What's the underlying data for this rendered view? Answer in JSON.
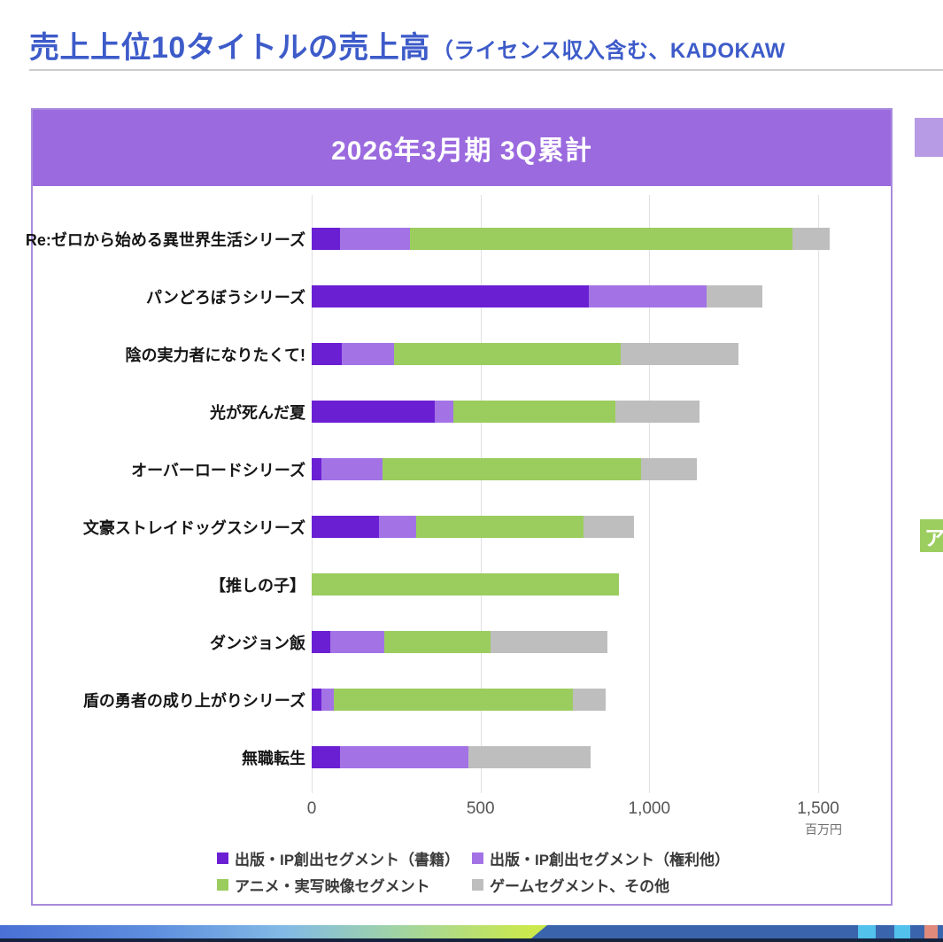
{
  "page": {
    "title_main": "売上上位10タイトルの売上高",
    "title_paren": "（ライセンス収入含む、KADOKAW",
    "title_color": "#3d5bc9"
  },
  "side": {
    "top_right_swatch_color": "#b79be5",
    "green_badge_label": "ア",
    "green_badge_color": "#9bce5f"
  },
  "chart_data": {
    "type": "bar",
    "orientation": "horizontal",
    "stacked": true,
    "title": "2026年3月期 3Q累計",
    "unit": "百万円",
    "xlim": [
      0,
      1500
    ],
    "grid": true,
    "legend_position": "bottom",
    "x_ticks": [
      "0",
      "500",
      "1,000",
      "1,500"
    ],
    "x_tick_values": [
      0,
      500,
      1000,
      1500
    ],
    "categories": [
      "Re:ゼロから始める異世界生活シリーズ",
      "パンどろぼうシリーズ",
      "陰の実力者になりたくて!",
      "光が死んだ夏",
      "オーバーロードシリーズ",
      "文豪ストレイドッグスシリーズ",
      "【推しの子】",
      "ダンジョン飯",
      "盾の勇者の成り上がりシリーズ",
      "無職転生"
    ],
    "series": [
      {
        "name": "出版・IP創出セグメント（書籍）",
        "color": "#6b1fd3",
        "values": [
          85,
          820,
          90,
          365,
          30,
          200,
          0,
          55,
          30,
          85
        ]
      },
      {
        "name": "出版・IP創出セグメント（権利他）",
        "color": "#a373e6",
        "values": [
          205,
          350,
          155,
          55,
          180,
          110,
          0,
          160,
          35,
          380
        ]
      },
      {
        "name": "アニメ・実写映像セグメント",
        "color": "#9acd5e",
        "values": [
          1135,
          0,
          670,
          480,
          765,
          495,
          910,
          315,
          710,
          0
        ]
      },
      {
        "name": "ゲームセグメント、その他",
        "color": "#bebebe",
        "values": [
          110,
          165,
          350,
          250,
          165,
          150,
          0,
          345,
          95,
          360
        ]
      }
    ]
  },
  "panel": {
    "header_bg": "#9b6adf",
    "border_color": "#a88bdc"
  },
  "footer_strip": {
    "gradient_colors": [
      "#4a70d5",
      "#5e8ede",
      "#82bae6",
      "#9fd3a6",
      "#cbe94c"
    ],
    "base_color": "#3a64ab",
    "bottom_edge_color": "#16233e",
    "blocks": [
      {
        "x": 969,
        "w": 20,
        "color": "#52c1ec"
      },
      {
        "x": 1010,
        "w": 18,
        "color": "#52c1ec"
      },
      {
        "x": 1044,
        "w": 15,
        "color": "#e08a7c"
      }
    ]
  }
}
